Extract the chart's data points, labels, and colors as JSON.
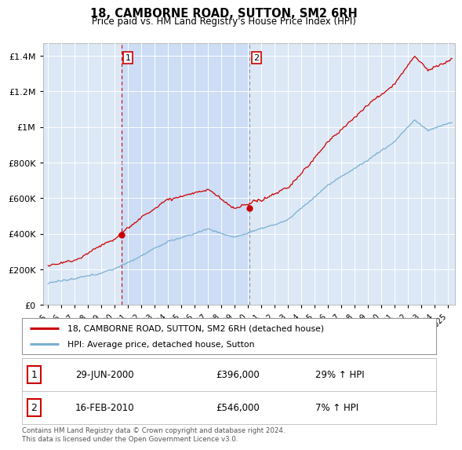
{
  "title": "18, CAMBORNE ROAD, SUTTON, SM2 6RH",
  "subtitle": "Price paid vs. HM Land Registry's House Price Index (HPI)",
  "ylabel_ticks": [
    "£0",
    "£200K",
    "£400K",
    "£600K",
    "£800K",
    "£1M",
    "£1.2M",
    "£1.4M"
  ],
  "ytick_vals": [
    0,
    200000,
    400000,
    600000,
    800000,
    1000000,
    1200000,
    1400000
  ],
  "ylim": [
    0,
    1470000
  ],
  "xlim_start": 1994.6,
  "xlim_end": 2025.5,
  "sale1": {
    "date_x": 2000.49,
    "price": 396000,
    "label": "1",
    "date_str": "29-JUN-2000",
    "pct": "29% ↑ HPI"
  },
  "sale2": {
    "date_x": 2010.12,
    "price": 546000,
    "label": "2",
    "date_str": "16-FEB-2010",
    "pct": "7% ↑ HPI"
  },
  "line_color_red": "#cc0000",
  "line_color_blue": "#7ab0d4",
  "vline_color_red": "#cc0000",
  "vline_color_gray": "#999999",
  "bg_chart": "#dce8f5",
  "bg_between": "#ccddf0",
  "bg_figure": "#ffffff",
  "legend_label_red": "18, CAMBORNE ROAD, SUTTON, SM2 6RH (detached house)",
  "legend_label_blue": "HPI: Average price, detached house, Sutton",
  "footer": "Contains HM Land Registry data © Crown copyright and database right 2024.\nThis data is licensed under the Open Government Licence v3.0.",
  "xtick_years": [
    1995,
    1996,
    1997,
    1998,
    1999,
    2000,
    2001,
    2002,
    2003,
    2004,
    2005,
    2006,
    2007,
    2008,
    2009,
    2010,
    2011,
    2012,
    2013,
    2014,
    2015,
    2016,
    2017,
    2018,
    2019,
    2020,
    2021,
    2022,
    2023,
    2024,
    2025
  ]
}
